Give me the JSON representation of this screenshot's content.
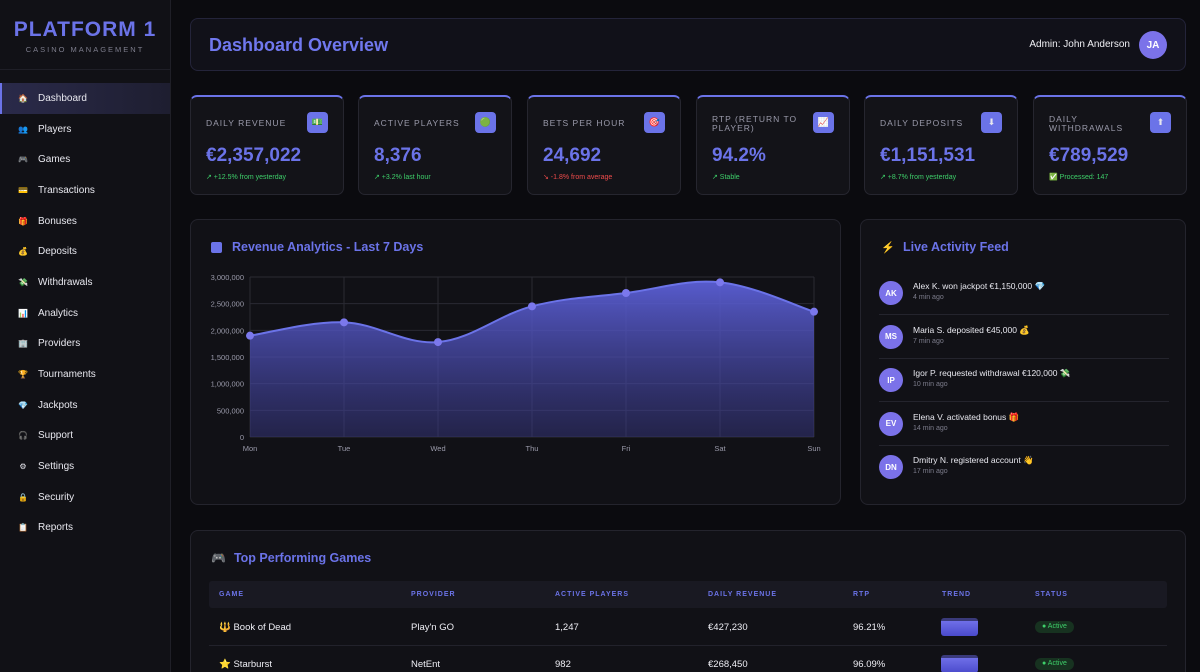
{
  "brand": {
    "title": "PLATFORM 1",
    "subtitle": "CASINO MANAGEMENT"
  },
  "nav": [
    {
      "label": "Dashboard",
      "icon": "home-icon",
      "glyph": "🏠",
      "active": true
    },
    {
      "label": "Players",
      "icon": "users-icon",
      "glyph": "👥"
    },
    {
      "label": "Games",
      "icon": "gamepad-icon",
      "glyph": "🎮"
    },
    {
      "label": "Transactions",
      "icon": "card-icon",
      "glyph": "💳"
    },
    {
      "label": "Bonuses",
      "icon": "gift-icon",
      "glyph": "🎁"
    },
    {
      "label": "Deposits",
      "icon": "moneybag-icon",
      "glyph": "💰"
    },
    {
      "label": "Withdrawals",
      "icon": "money-wings-icon",
      "glyph": "💸"
    },
    {
      "label": "Analytics",
      "icon": "chart-icon",
      "glyph": "📊"
    },
    {
      "label": "Providers",
      "icon": "building-icon",
      "glyph": "🏢"
    },
    {
      "label": "Tournaments",
      "icon": "trophy-icon",
      "glyph": "🏆"
    },
    {
      "label": "Jackpots",
      "icon": "diamond-icon",
      "glyph": "💎"
    },
    {
      "label": "Support",
      "icon": "headset-icon",
      "glyph": "🎧"
    },
    {
      "label": "Settings",
      "icon": "gear-icon",
      "glyph": "⚙"
    },
    {
      "label": "Security",
      "icon": "lock-icon",
      "glyph": "🔒"
    },
    {
      "label": "Reports",
      "icon": "clipboard-icon",
      "glyph": "📋"
    }
  ],
  "header": {
    "title": "Dashboard Overview",
    "admin": "Admin: John Anderson",
    "avatar": "JA"
  },
  "stats": [
    {
      "label": "DAILY REVENUE",
      "value": "€2,357,022",
      "change": "↗ +12.5% from yesterday",
      "trend": "up",
      "icon": "cash-icon",
      "glyph": "💵"
    },
    {
      "label": "ACTIVE PLAYERS",
      "value": "8,376",
      "change": "↗ +3.2% last hour",
      "trend": "up",
      "icon": "globe-icon",
      "glyph": "🟢"
    },
    {
      "label": "BETS PER HOUR",
      "value": "24,692",
      "change": "↘ -1.8% from average",
      "trend": "down",
      "icon": "target-icon",
      "glyph": "🎯"
    },
    {
      "label": "RTP (RETURN TO PLAYER)",
      "value": "94.2%",
      "change": "↗ Stable",
      "trend": "up",
      "icon": "trend-chart-icon",
      "glyph": "📈"
    },
    {
      "label": "DAILY DEPOSITS",
      "value": "€1,151,531",
      "change": "↗ +8.7% from yesterday",
      "trend": "up",
      "icon": "down-arrow-icon",
      "glyph": "⬇"
    },
    {
      "label": "DAILY WITHDRAWALS",
      "value": "€789,529",
      "change": "✅ Processed: 147",
      "trend": "up",
      "icon": "up-arrow-icon",
      "glyph": "⬆"
    }
  ],
  "revenue_panel": {
    "title": "Revenue Analytics - Last 7 Days"
  },
  "chart_data": {
    "type": "area",
    "categories": [
      "Mon",
      "Tue",
      "Wed",
      "Thu",
      "Fri",
      "Sat",
      "Sun"
    ],
    "values": [
      1900000,
      2150000,
      1780000,
      2450000,
      2700000,
      2900000,
      2350000
    ],
    "ylim": [
      0,
      3000000
    ],
    "yticks": [
      "0",
      "500,000",
      "1,000,000",
      "1,500,000",
      "2,000,000",
      "2,500,000",
      "3,000,000"
    ],
    "grid": true,
    "color": "#6b73e8"
  },
  "feed": {
    "title": "Live Activity Feed",
    "items": [
      {
        "initials": "AK",
        "text": "Alex K. won jackpot €1,150,000 💎",
        "time": "4 min ago"
      },
      {
        "initials": "MS",
        "text": "Maria S. deposited €45,000 💰",
        "time": "7 min ago"
      },
      {
        "initials": "IP",
        "text": "Igor P. requested withdrawal €120,000 💸",
        "time": "10 min ago"
      },
      {
        "initials": "EV",
        "text": "Elena V. activated bonus 🎁",
        "time": "14 min ago"
      },
      {
        "initials": "DN",
        "text": "Dmitry N. registered account 👋",
        "time": "17 min ago"
      }
    ]
  },
  "games": {
    "title": "Top Performing Games",
    "columns": [
      "GAME",
      "PROVIDER",
      "ACTIVE PLAYERS",
      "DAILY REVENUE",
      "RTP",
      "TREND",
      "STATUS"
    ],
    "rows": [
      {
        "game": "🔱 Book of Dead",
        "provider": "Play'n GO",
        "players": "1,247",
        "revenue": "€427,230",
        "rtp": "96.21%",
        "status": "● Active"
      },
      {
        "game": "⭐ Starburst",
        "provider": "NetEnt",
        "players": "982",
        "revenue": "€268,450",
        "rtp": "96.09%",
        "status": "● Active"
      }
    ]
  }
}
